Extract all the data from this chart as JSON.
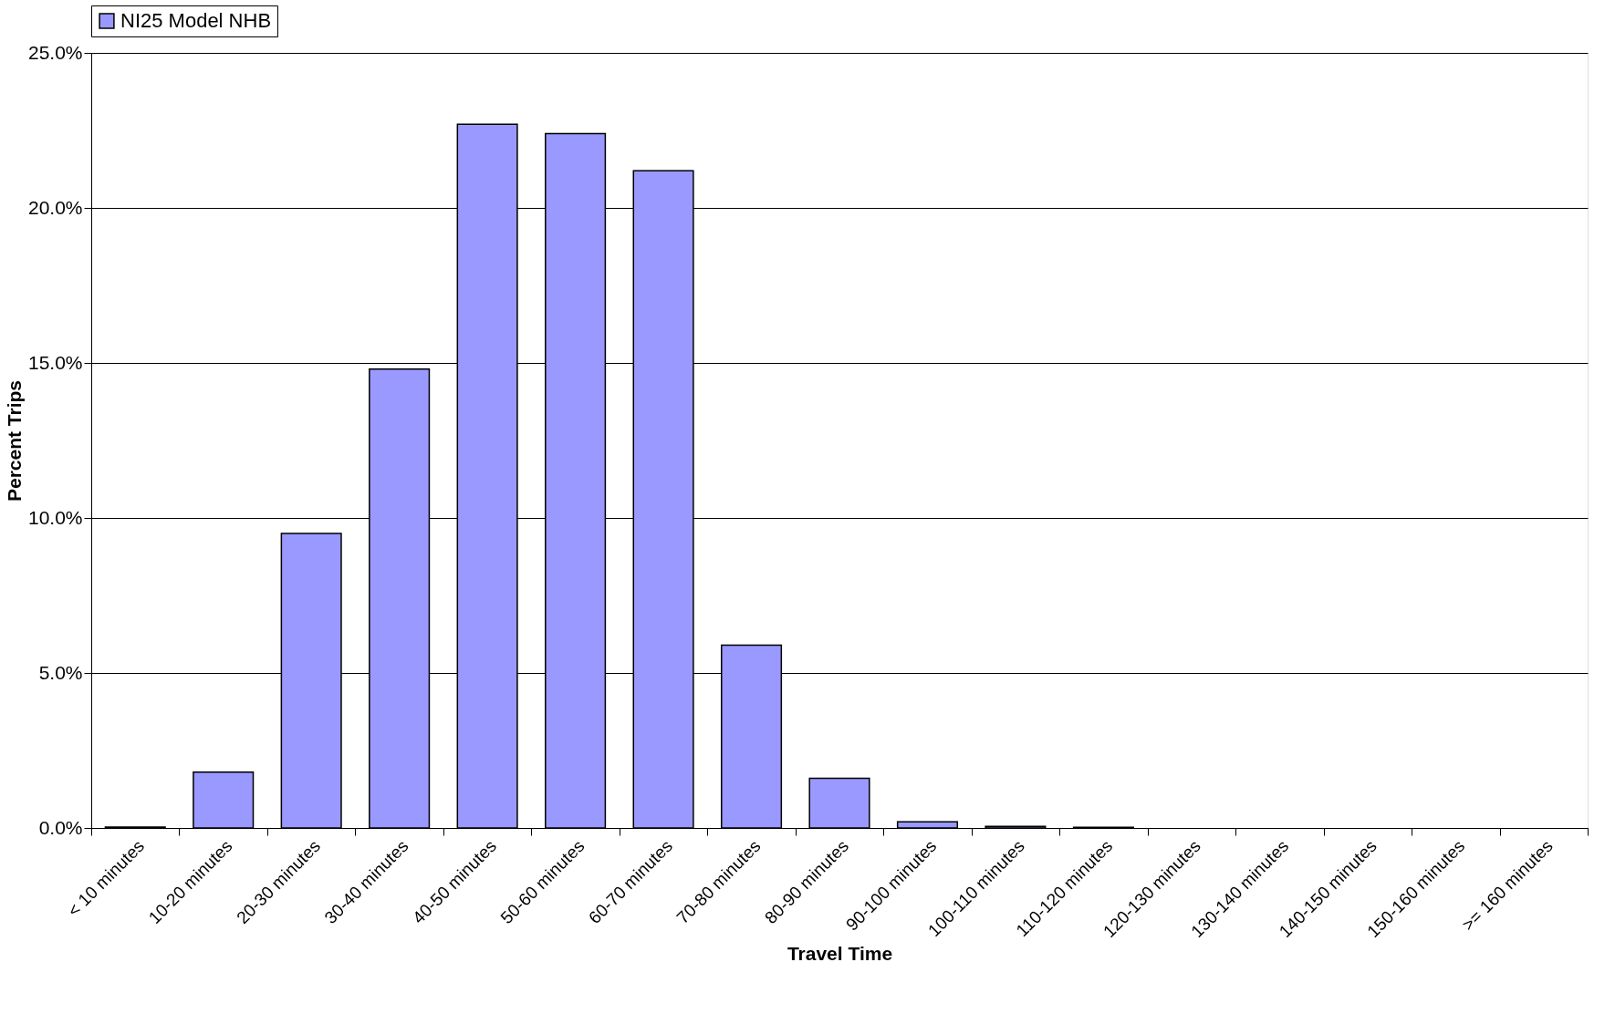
{
  "chart_data": {
    "type": "bar",
    "xlabel": "Travel Time",
    "ylabel": "Percent Trips",
    "categories": [
      "< 10 minutes",
      "10-20 minutes",
      "20-30 minutes",
      "30-40 minutes",
      "40-50 minutes",
      "50-60 minutes",
      "60-70 minutes",
      "70-80 minutes",
      "80-90 minutes",
      "90-100 minutes",
      "100-110 minutes",
      "110-120 minutes",
      "120-130 minutes",
      "130-140 minutes",
      "140-150 minutes",
      "150-160 minutes",
      ">= 160 minutes"
    ],
    "series": [
      {
        "name": "NI25 Model NHB",
        "color": "#9999ff",
        "values": [
          0.03,
          1.8,
          9.5,
          14.8,
          22.7,
          22.4,
          21.2,
          5.9,
          1.6,
          0.2,
          0.05,
          0.02,
          0,
          0,
          0,
          0,
          0
        ]
      }
    ],
    "ylim": [
      0,
      25
    ],
    "yticks": [
      {
        "value": 0,
        "label": "0.0%"
      },
      {
        "value": 5,
        "label": "5.0%"
      },
      {
        "value": 10,
        "label": "10.0%"
      },
      {
        "value": 15,
        "label": "15.0%"
      },
      {
        "value": 20,
        "label": "20.0%"
      },
      {
        "value": 25,
        "label": "25.0%"
      }
    ],
    "grid": "y",
    "legend": "top"
  }
}
